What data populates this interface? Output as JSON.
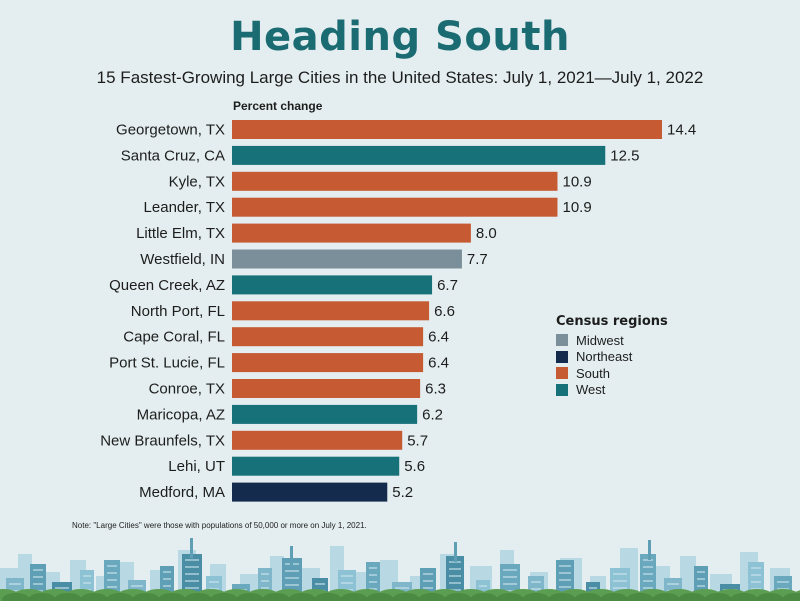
{
  "title": "Heading South",
  "subtitle": "15 Fastest-Growing Large Cities in the United States: July 1, 2021—July 1, 2022",
  "note": "Note: \"Large Cities\" were those with populations of 50,000 or more on July 1, 2021.",
  "legend": {
    "title": "Census regions",
    "items": [
      {
        "label": "Midwest",
        "color": "#7b8f9b"
      },
      {
        "label": "Northeast",
        "color": "#142b4e"
      },
      {
        "label": "South",
        "color": "#c55a33"
      },
      {
        "label": "West",
        "color": "#177178"
      }
    ]
  },
  "chart_data": {
    "type": "bar",
    "orientation": "horizontal",
    "xlabel": "Percent change",
    "categories": [
      "Georgetown, TX",
      "Santa Cruz, CA",
      "Kyle, TX",
      "Leander, TX",
      "Little Elm, TX",
      "Westfield, IN",
      "Queen Creek, AZ",
      "North Port, FL",
      "Cape Coral, FL",
      "Port St. Lucie, FL",
      "Conroe, TX",
      "Maricopa, AZ",
      "New Braunfels, TX",
      "Lehi, UT",
      "Medford, MA"
    ],
    "values": [
      14.4,
      12.5,
      10.9,
      10.9,
      8.0,
      7.7,
      6.7,
      6.6,
      6.4,
      6.4,
      6.3,
      6.2,
      5.7,
      5.6,
      5.2
    ],
    "value_labels": [
      "14.4",
      "12.5",
      "10.9",
      "10.9",
      "8.0",
      "7.7",
      "6.7",
      "6.6",
      "6.4",
      "6.4",
      "6.3",
      "6.2",
      "5.7",
      "5.6",
      "5.2"
    ],
    "regions": [
      "South",
      "West",
      "South",
      "South",
      "South",
      "Midwest",
      "West",
      "South",
      "South",
      "South",
      "South",
      "West",
      "South",
      "West",
      "Northeast"
    ],
    "xlim": [
      0,
      14.4
    ],
    "grid": false,
    "legend_position": "right"
  }
}
